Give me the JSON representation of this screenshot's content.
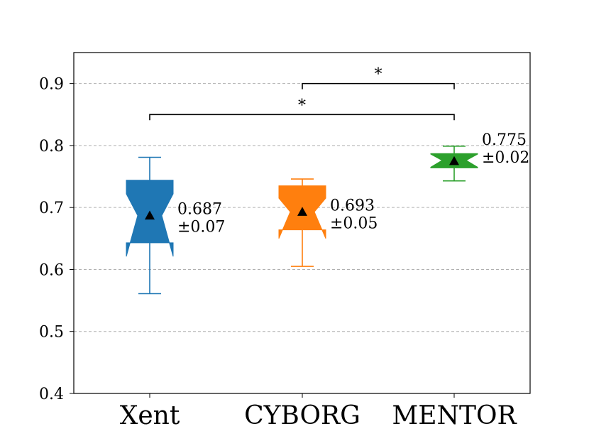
{
  "chart_data": {
    "type": "boxplot",
    "title": "",
    "xlabel": "",
    "ylabel": "",
    "ylim": [
      0.4,
      0.95
    ],
    "yticks": [
      0.4,
      0.5,
      0.6,
      0.7,
      0.8,
      0.9
    ],
    "ytick_labels": [
      "0.4",
      "0.5",
      "0.6",
      "0.7",
      "0.8",
      "0.9"
    ],
    "grid": "horizontal dashed",
    "categories": [
      "Xent",
      "CYBORG",
      "MENTOR"
    ],
    "colors": [
      "#1f77b4",
      "#ff7f0e",
      "#2ca02c"
    ],
    "boxes": [
      {
        "name": "Xent",
        "whisker_low": 0.561,
        "q1": 0.643,
        "median": 0.687,
        "q3": 0.744,
        "whisker_high": 0.781,
        "notch_low": 0.621,
        "notch_high": 0.722,
        "mean": 0.687,
        "label_mean": "0.687",
        "label_std": "±0.07"
      },
      {
        "name": "CYBORG",
        "whisker_low": 0.605,
        "q1": 0.664,
        "median": 0.693,
        "q3": 0.735,
        "whisker_high": 0.746,
        "notch_low": 0.65,
        "notch_high": 0.715,
        "mean": 0.693,
        "label_mean": "0.693",
        "label_std": "±0.05"
      },
      {
        "name": "MENTOR",
        "whisker_low": 0.743,
        "q1": 0.764,
        "median": 0.776,
        "q3": 0.787,
        "whisker_high": 0.799,
        "notch_low": 0.765,
        "notch_high": 0.786,
        "mean": 0.775,
        "label_mean": "0.775",
        "label_std": "±0.02"
      }
    ],
    "significance": [
      {
        "from": "CYBORG",
        "to": "MENTOR",
        "y": 0.9,
        "label": "*"
      },
      {
        "from": "Xent",
        "to": "MENTOR",
        "y": 0.85,
        "label": "*"
      }
    ]
  }
}
